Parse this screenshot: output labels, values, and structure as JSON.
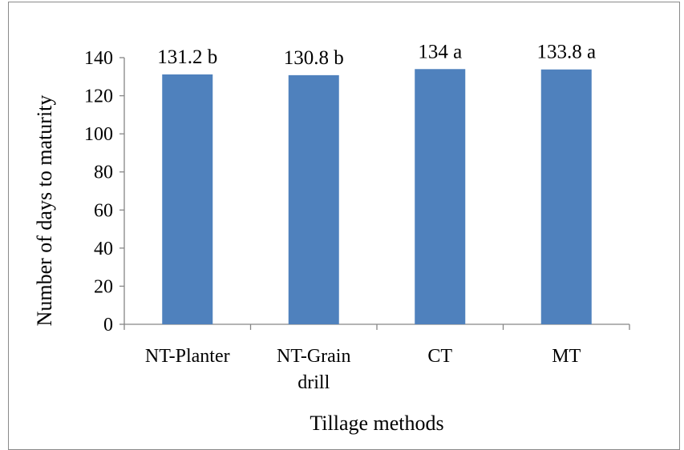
{
  "chart_data": {
    "type": "bar",
    "title": "",
    "xlabel": "Tillage methods",
    "ylabel": "Number of days to maturity",
    "categories": [
      [
        "NT-Planter"
      ],
      [
        "NT-Grain",
        "drill"
      ],
      [
        "CT"
      ],
      [
        "MT"
      ]
    ],
    "values": [
      131.2,
      130.8,
      134,
      133.8
    ],
    "data_labels": [
      "131.2 b",
      "130.8 b",
      "134 a",
      "133.8 a"
    ],
    "ylim": [
      0,
      140
    ],
    "yticks": [
      0,
      20,
      40,
      60,
      80,
      100,
      120,
      140
    ],
    "grid": false,
    "legend": "none",
    "bar_color": "#4f81bd",
    "axis_color": "#868686"
  }
}
